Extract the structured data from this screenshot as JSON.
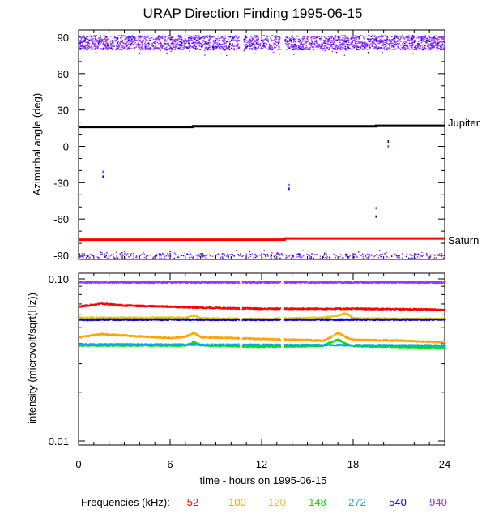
{
  "chart_data": [
    {
      "type": "scatter",
      "title": "URAP Direction Finding  1995-06-15",
      "ylabel": "Azimuthal angle (deg)",
      "ylim": [
        -95,
        95
      ],
      "xlim": [
        0,
        24
      ],
      "yticks": [
        90,
        60,
        30,
        0,
        -30,
        -60,
        -90
      ],
      "annotations": [
        "Jupiter",
        "Saturn"
      ],
      "series": [
        {
          "name": "Jupiter",
          "color": "#000000",
          "x": [
            0,
            7.5,
            7.5,
            19.5,
            19.5,
            24
          ],
          "y": [
            16,
            16,
            16.5,
            16.5,
            17,
            17
          ]
        },
        {
          "name": "Saturn",
          "color": "#ff0000",
          "x": [
            0,
            13.5,
            13.5,
            24
          ],
          "y": [
            -77,
            -77,
            -76,
            -76
          ]
        }
      ],
      "isolated_points": {
        "x": [
          1.6,
          1.6,
          13.8,
          13.8,
          19.5,
          19.5,
          20.3,
          20.3
        ],
        "y": [
          -21,
          -25,
          -32,
          -35,
          -51,
          -58,
          0,
          4
        ]
      }
    },
    {
      "type": "scatter",
      "ylabel": "intensity (microvolt/sqrt(Hz))",
      "xlabel": "time - hours on 1995-06-15",
      "scale": "log",
      "ylim": [
        0.01,
        0.1
      ],
      "ytick_labels": [
        "0.10",
        "0.01"
      ],
      "xlim": [
        0,
        24
      ],
      "xticks": [
        0,
        6,
        12,
        18,
        24
      ],
      "series": [
        {
          "name": "940",
          "color": "#9933ff",
          "x": [
            0,
            24
          ],
          "y": [
            0.096,
            0.096
          ]
        },
        {
          "name": "52",
          "color": "#ff0000",
          "x": [
            0,
            1.5,
            3,
            6,
            8,
            12,
            18,
            22,
            24
          ],
          "y": [
            0.068,
            0.071,
            0.069,
            0.068,
            0.067,
            0.066,
            0.066,
            0.0655,
            0.065
          ]
        },
        {
          "name": "120",
          "color": "#e6c800",
          "x": [
            0,
            7,
            7.5,
            8,
            12,
            16,
            17,
            17.5,
            18,
            24
          ],
          "y": [
            0.058,
            0.058,
            0.06,
            0.0575,
            0.057,
            0.058,
            0.06,
            0.062,
            0.0575,
            0.057
          ]
        },
        {
          "name": "540",
          "color": "#0000ff",
          "x": [
            0,
            24
          ],
          "y": [
            0.0565,
            0.0565
          ]
        },
        {
          "name": "100",
          "color": "#ffa500",
          "x": [
            0,
            1.5,
            4,
            6,
            7,
            7.5,
            8,
            12,
            16,
            16.5,
            17,
            17.5,
            18,
            21,
            24
          ],
          "y": [
            0.044,
            0.046,
            0.0445,
            0.0435,
            0.0445,
            0.047,
            0.044,
            0.043,
            0.042,
            0.044,
            0.047,
            0.044,
            0.0425,
            0.042,
            0.041
          ]
        },
        {
          "name": "148",
          "color": "#00e000",
          "x": [
            0,
            7,
            7.5,
            8,
            12,
            16,
            16.5,
            17,
            17.5,
            18,
            24
          ],
          "y": [
            0.0392,
            0.0392,
            0.041,
            0.0392,
            0.0385,
            0.039,
            0.041,
            0.0425,
            0.04,
            0.0388,
            0.038
          ]
        },
        {
          "name": "272",
          "color": "#00aaee",
          "x": [
            0,
            24
          ],
          "y": [
            0.0398,
            0.0392
          ]
        }
      ]
    }
  ],
  "legend": {
    "title": "Frequencies (kHz):",
    "items": [
      {
        "label": "52",
        "color": "#ff0000"
      },
      {
        "label": "100",
        "color": "#ffa500"
      },
      {
        "label": "120",
        "color": "#e6c800"
      },
      {
        "label": "148",
        "color": "#00e000"
      },
      {
        "label": "272",
        "color": "#00aaee"
      },
      {
        "label": "540",
        "color": "#0000ff"
      },
      {
        "label": "940",
        "color": "#9933ff"
      }
    ]
  }
}
